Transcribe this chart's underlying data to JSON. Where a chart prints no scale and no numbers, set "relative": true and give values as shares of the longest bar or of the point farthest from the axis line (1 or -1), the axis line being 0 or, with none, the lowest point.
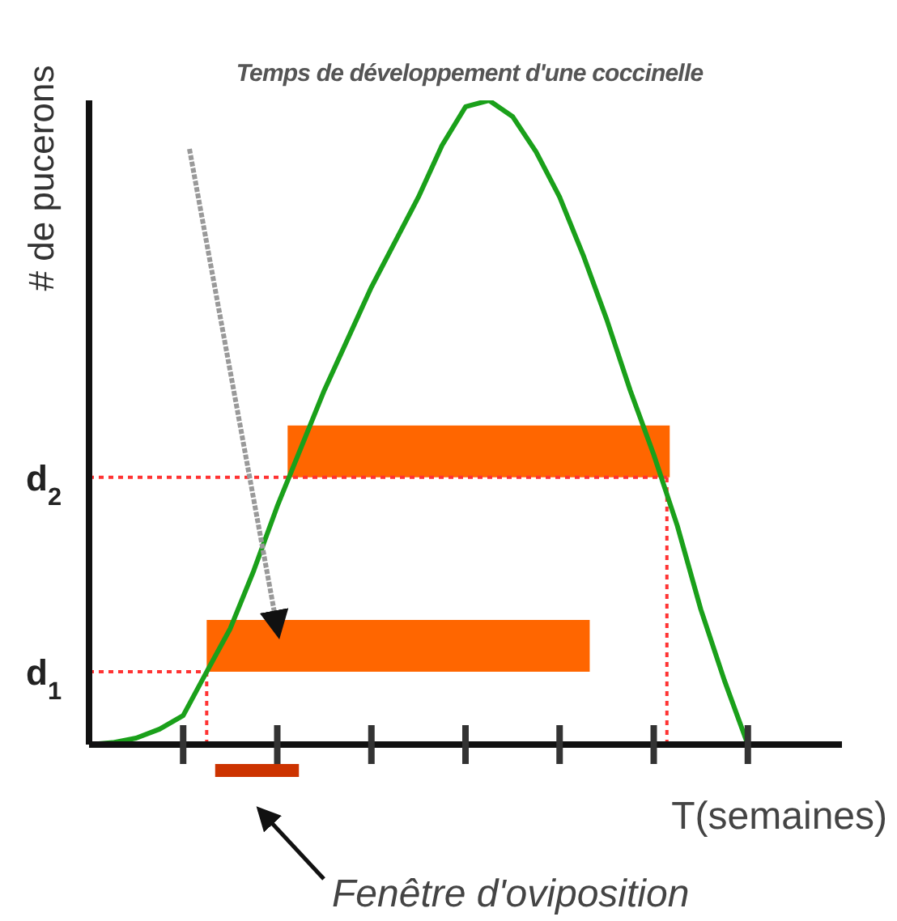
{
  "chart_data": {
    "type": "line",
    "relative": true,
    "title": "Temps de développement d'une coccinelle",
    "xlabel": "T(semaines)",
    "ylabel": "# de pucerons",
    "categories": [
      null,
      null,
      null,
      null,
      null,
      null,
      null,
      null,
      null,
      null,
      null,
      null,
      null,
      null,
      null,
      null,
      null,
      null,
      null,
      null,
      null,
      null,
      null,
      null,
      null,
      null,
      null,
      null,
      null,
      null,
      null,
      null,
      null
    ],
    "series": [
      {
        "color": "#1aa01a",
        "values": [
          0,
          0.003,
          0.01,
          0.024,
          0.045,
          0.113,
          0.18,
          0.27,
          0.37,
          0.46,
          0.55,
          0.63,
          0.71,
          0.78,
          0.85,
          0.93,
          0.99,
          1,
          0.975,
          0.92,
          0.85,
          0.76,
          0.66,
          0.55,
          0.45,
          0.34,
          0.21,
          0.1,
          0,
          null,
          null,
          null,
          null
        ]
      }
    ],
    "ref_lines": [
      {
        "axis": "y",
        "value": 0.113,
        "label": "d$_{1}$",
        "color": "#ff3333",
        "line_style": "dotted"
      },
      {
        "axis": "y",
        "value": 0.415,
        "label": "d$_{2}$",
        "color": "#ff3333",
        "line_style": "dotted"
      }
    ],
    "annotations": [
      "Fenêtre d'oviposition"
    ]
  }
}
